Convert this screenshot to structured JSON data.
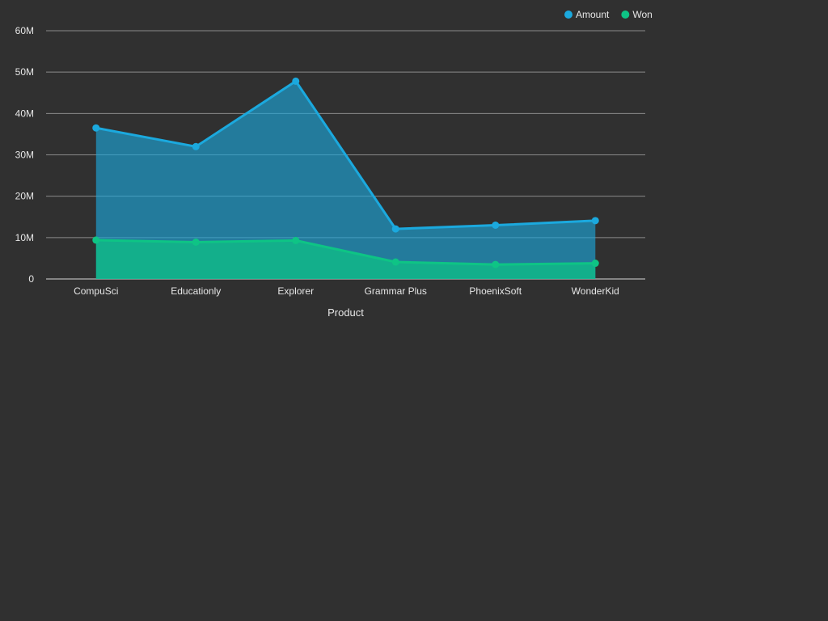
{
  "chart_data": {
    "type": "area",
    "title": "",
    "xlabel": "Product",
    "ylabel": "",
    "categories": [
      "CompuSci",
      "Educationly",
      "Explorer",
      "Grammar Plus",
      "PhoenixSoft",
      "WonderKid"
    ],
    "series": [
      {
        "name": "Amount",
        "values": [
          36500000,
          32000000,
          47800000,
          12100000,
          13000000,
          14100000
        ],
        "color": "#1ba9de"
      },
      {
        "name": "Won",
        "values": [
          9400000,
          8900000,
          9300000,
          4100000,
          3500000,
          3800000
        ],
        "color": "#0ec485"
      }
    ],
    "ylim": [
      0,
      60000000
    ],
    "y_ticks": [
      {
        "value": 0,
        "label": "0"
      },
      {
        "value": 10000000,
        "label": "10M"
      },
      {
        "value": 20000000,
        "label": "20M"
      },
      {
        "value": 30000000,
        "label": "30M"
      },
      {
        "value": 40000000,
        "label": "40M"
      },
      {
        "value": 50000000,
        "label": "50M"
      },
      {
        "value": 60000000,
        "label": "60M"
      }
    ],
    "grid": true,
    "legend_position": "top-right"
  }
}
